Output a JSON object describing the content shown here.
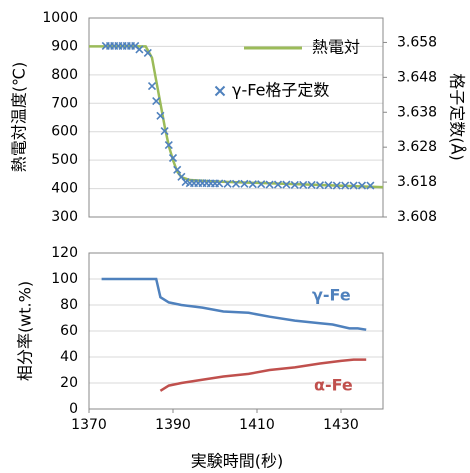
{
  "chart_data": [
    {
      "type": "line",
      "ylabel": "熱電対温度(℃)",
      "y2label": "格子定数(Å)",
      "xlim": [
        1370,
        1440
      ],
      "ylim": [
        300,
        1000
      ],
      "yticks": [
        300,
        400,
        500,
        600,
        700,
        800,
        900,
        1000
      ],
      "y2lim": [
        3.608,
        3.665
      ],
      "y2ticks": [
        3.608,
        3.618,
        3.628,
        3.638,
        3.648,
        3.658
      ],
      "grid": true,
      "legend": "upper right",
      "series": [
        {
          "name": "熱電対",
          "color": "#9bbb59",
          "x": [
            1370,
            1383.5,
            1385,
            1386,
            1387,
            1388,
            1389,
            1390,
            1391,
            1392,
            1394,
            1400,
            1420,
            1440
          ],
          "values": [
            900,
            900,
            860,
            780,
            700,
            620,
            550,
            500,
            460,
            440,
            430,
            425,
            415,
            405
          ]
        },
        {
          "name": "γ-Fe格子定数",
          "color": "#4f81bd",
          "axis": "y2",
          "marker": "x",
          "x": [
            1374,
            1375,
            1376,
            1377,
            1378,
            1379,
            1380,
            1381,
            1382,
            1384,
            1385,
            1386,
            1387,
            1388,
            1389,
            1390,
            1391,
            1392,
            1393,
            1394,
            1395,
            1396,
            1397,
            1398,
            1399,
            1400,
            1401,
            1403,
            1405,
            1407,
            1409,
            1411,
            1413,
            1415,
            1417,
            1419,
            1421,
            1423,
            1425,
            1427,
            1429,
            1431,
            1433,
            1435,
            1437
          ],
          "values": [
            3.657,
            3.657,
            3.657,
            3.657,
            3.657,
            3.657,
            3.657,
            3.657,
            3.656,
            3.655,
            3.6455,
            3.6412,
            3.637,
            3.6326,
            3.6286,
            3.6249,
            3.6215,
            3.6195,
            3.618,
            3.6177,
            3.6177,
            3.6177,
            3.6177,
            3.6177,
            3.6176,
            3.6176,
            3.6176,
            3.6175,
            3.6175,
            3.6175,
            3.6174,
            3.6174,
            3.6173,
            3.6173,
            3.6173,
            3.6172,
            3.6172,
            3.6172,
            3.6171,
            3.6171,
            3.617,
            3.617,
            3.617,
            3.617,
            3.617
          ]
        }
      ]
    },
    {
      "type": "line",
      "xlabel": "実験時間(秒)",
      "ylabel": "相分率(wt.%)",
      "xlim": [
        1370,
        1440
      ],
      "xticks": [
        1370,
        1390,
        1410,
        1430
      ],
      "ylim": [
        0,
        120
      ],
      "yticks": [
        0,
        20,
        40,
        60,
        80,
        100,
        120
      ],
      "grid": true,
      "series": [
        {
          "name": "γ-Fe",
          "color": "#4f81bd",
          "x": [
            1373,
            1386,
            1387,
            1389,
            1392,
            1397,
            1402,
            1408,
            1413,
            1419,
            1425,
            1428,
            1432,
            1434,
            1436
          ],
          "values": [
            100,
            100,
            86,
            82,
            80,
            78,
            75,
            74,
            71,
            68,
            66,
            65,
            62,
            62,
            61
          ]
        },
        {
          "name": "α-Fe",
          "color": "#c0504d",
          "x": [
            1387,
            1389,
            1392,
            1396,
            1402,
            1408,
            1413,
            1419,
            1425,
            1430,
            1433,
            1436
          ],
          "values": [
            14,
            18,
            20,
            22,
            25,
            27,
            30,
            32,
            35,
            37,
            38,
            38
          ]
        }
      ]
    }
  ]
}
